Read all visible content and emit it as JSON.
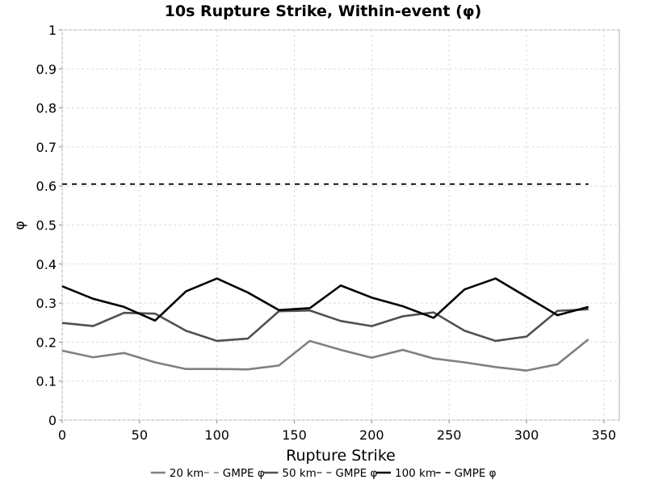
{
  "chart_data": {
    "type": "line",
    "title": "10s Rupture Strike, Within-event (φ)",
    "xlabel": "Rupture Strike",
    "ylabel": "φ",
    "xlim": [
      0,
      360
    ],
    "ylim": [
      0,
      1
    ],
    "xticks": [
      0,
      50,
      100,
      150,
      200,
      250,
      300,
      350
    ],
    "yticks": [
      0,
      0.1,
      0.2,
      0.3,
      0.4,
      0.5,
      0.6,
      0.7,
      0.8,
      0.9,
      1
    ],
    "ytick_labels": [
      "0",
      "0.1",
      "0.2",
      "0.3",
      "0.4",
      "0.5",
      "0.6",
      "0.7",
      "0.8",
      "0.9",
      "1"
    ],
    "grid": true,
    "legend_position": "bottom",
    "x": [
      0,
      20,
      40,
      60,
      80,
      100,
      120,
      140,
      160,
      180,
      200,
      220,
      240,
      260,
      280,
      300,
      320,
      340
    ],
    "series": [
      {
        "name": "20 km",
        "color": "#808080",
        "dash": "solid",
        "values": [
          0.178,
          0.161,
          0.172,
          0.148,
          0.131,
          0.131,
          0.13,
          0.14,
          0.203,
          0.18,
          0.16,
          0.18,
          0.158,
          0.148,
          0.136,
          0.127,
          0.143,
          0.207
        ]
      },
      {
        "name": "GMPE φ",
        "color": "#808080",
        "dash": "dashed",
        "values": [
          0.605,
          0.605,
          0.605,
          0.605,
          0.605,
          0.605,
          0.605,
          0.605,
          0.605,
          0.605,
          0.605,
          0.605,
          0.605,
          0.605,
          0.605,
          0.605,
          0.605,
          0.605
        ]
      },
      {
        "name": "50 km",
        "color": "#505050",
        "dash": "solid",
        "values": [
          0.249,
          0.241,
          0.275,
          0.273,
          0.229,
          0.203,
          0.209,
          0.279,
          0.281,
          0.254,
          0.241,
          0.266,
          0.276,
          0.229,
          0.203,
          0.214,
          0.28,
          0.284
        ]
      },
      {
        "name": "GMPE φ",
        "color": "#505050",
        "dash": "dashed",
        "values": [
          0.605,
          0.605,
          0.605,
          0.605,
          0.605,
          0.605,
          0.605,
          0.605,
          0.605,
          0.605,
          0.605,
          0.605,
          0.605,
          0.605,
          0.605,
          0.605,
          0.605,
          0.605
        ]
      },
      {
        "name": "100 km",
        "color": "#000000",
        "dash": "solid",
        "values": [
          0.343,
          0.311,
          0.29,
          0.255,
          0.33,
          0.363,
          0.327,
          0.282,
          0.287,
          0.345,
          0.314,
          0.292,
          0.262,
          0.335,
          0.363,
          0.316,
          0.269,
          0.29
        ]
      },
      {
        "name": "GMPE φ",
        "color": "#000000",
        "dash": "dashed",
        "values": [
          0.605,
          0.605,
          0.605,
          0.605,
          0.605,
          0.605,
          0.605,
          0.605,
          0.605,
          0.605,
          0.605,
          0.605,
          0.605,
          0.605,
          0.605,
          0.605,
          0.605,
          0.605
        ]
      }
    ]
  }
}
